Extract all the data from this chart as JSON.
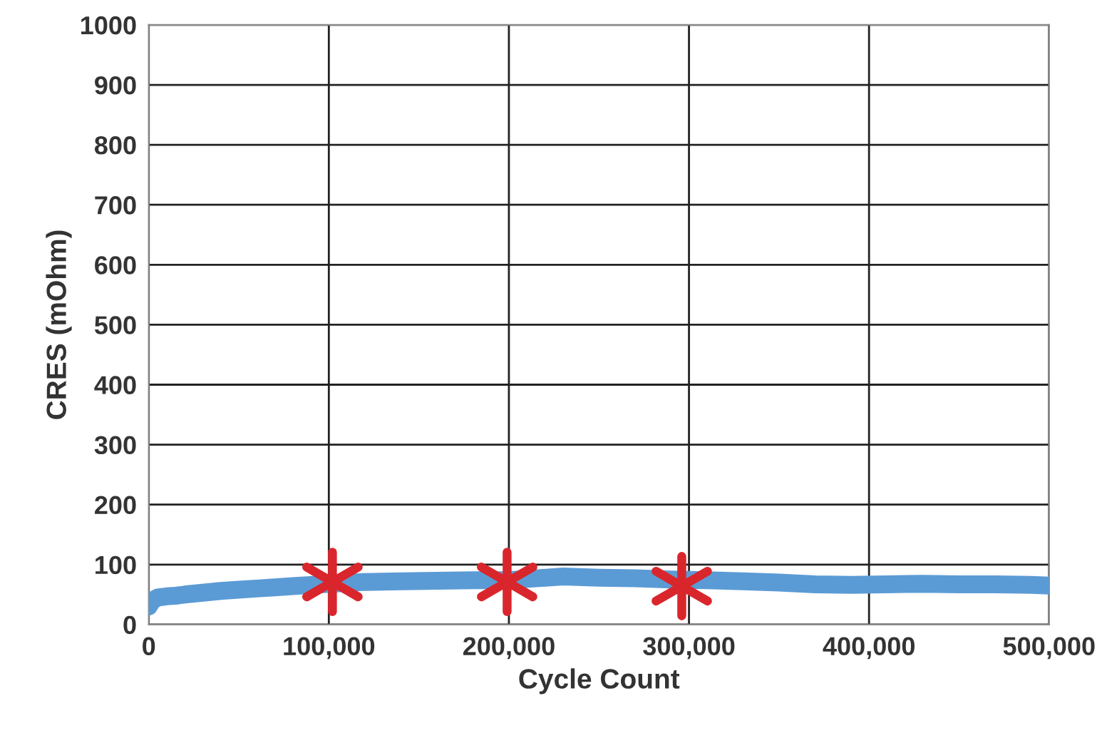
{
  "chart_data": {
    "type": "line",
    "xlabel": "Cycle Count",
    "ylabel": "CRES (mOhm)",
    "xlim": [
      0,
      500000
    ],
    "ylim": [
      0,
      1000
    ],
    "xticks": [
      0,
      {
        "value": 100000,
        "label": "100,000"
      },
      {
        "value": 200000,
        "label": "200,000"
      },
      {
        "value": 300000,
        "label": "300,000"
      },
      {
        "value": 400000,
        "label": "400,000"
      },
      {
        "value": 500000,
        "label": "500,000"
      }
    ],
    "yticks": [
      0,
      100,
      200,
      300,
      400,
      500,
      600,
      700,
      800,
      900,
      1000
    ],
    "grid": true,
    "series": [
      {
        "color": "#5b9bd5",
        "marker": "none",
        "x": [
          0,
          2000,
          5000,
          10000,
          15000,
          20000,
          30000,
          40000,
          50000,
          60000,
          70000,
          80000,
          90000,
          100000,
          120000,
          140000,
          160000,
          180000,
          200000,
          215000,
          230000,
          250000,
          270000,
          290000,
          310000,
          330000,
          350000,
          370000,
          390000,
          410000,
          430000,
          450000,
          470000,
          490000,
          500000
        ],
        "values": [
          30,
          40,
          45,
          47,
          48,
          50,
          53,
          56,
          58,
          60,
          62,
          64,
          66,
          68,
          71,
          72,
          73,
          74,
          74,
          77,
          80,
          78,
          77,
          75,
          74,
          72,
          70,
          67,
          66,
          67,
          68,
          67,
          67,
          66,
          65
        ]
      },
      {
        "type": "scatter",
        "color": "#d9262c",
        "marker": "cross",
        "x": [
          102000,
          199000,
          296000
        ],
        "values": [
          71,
          71,
          64
        ]
      }
    ]
  }
}
